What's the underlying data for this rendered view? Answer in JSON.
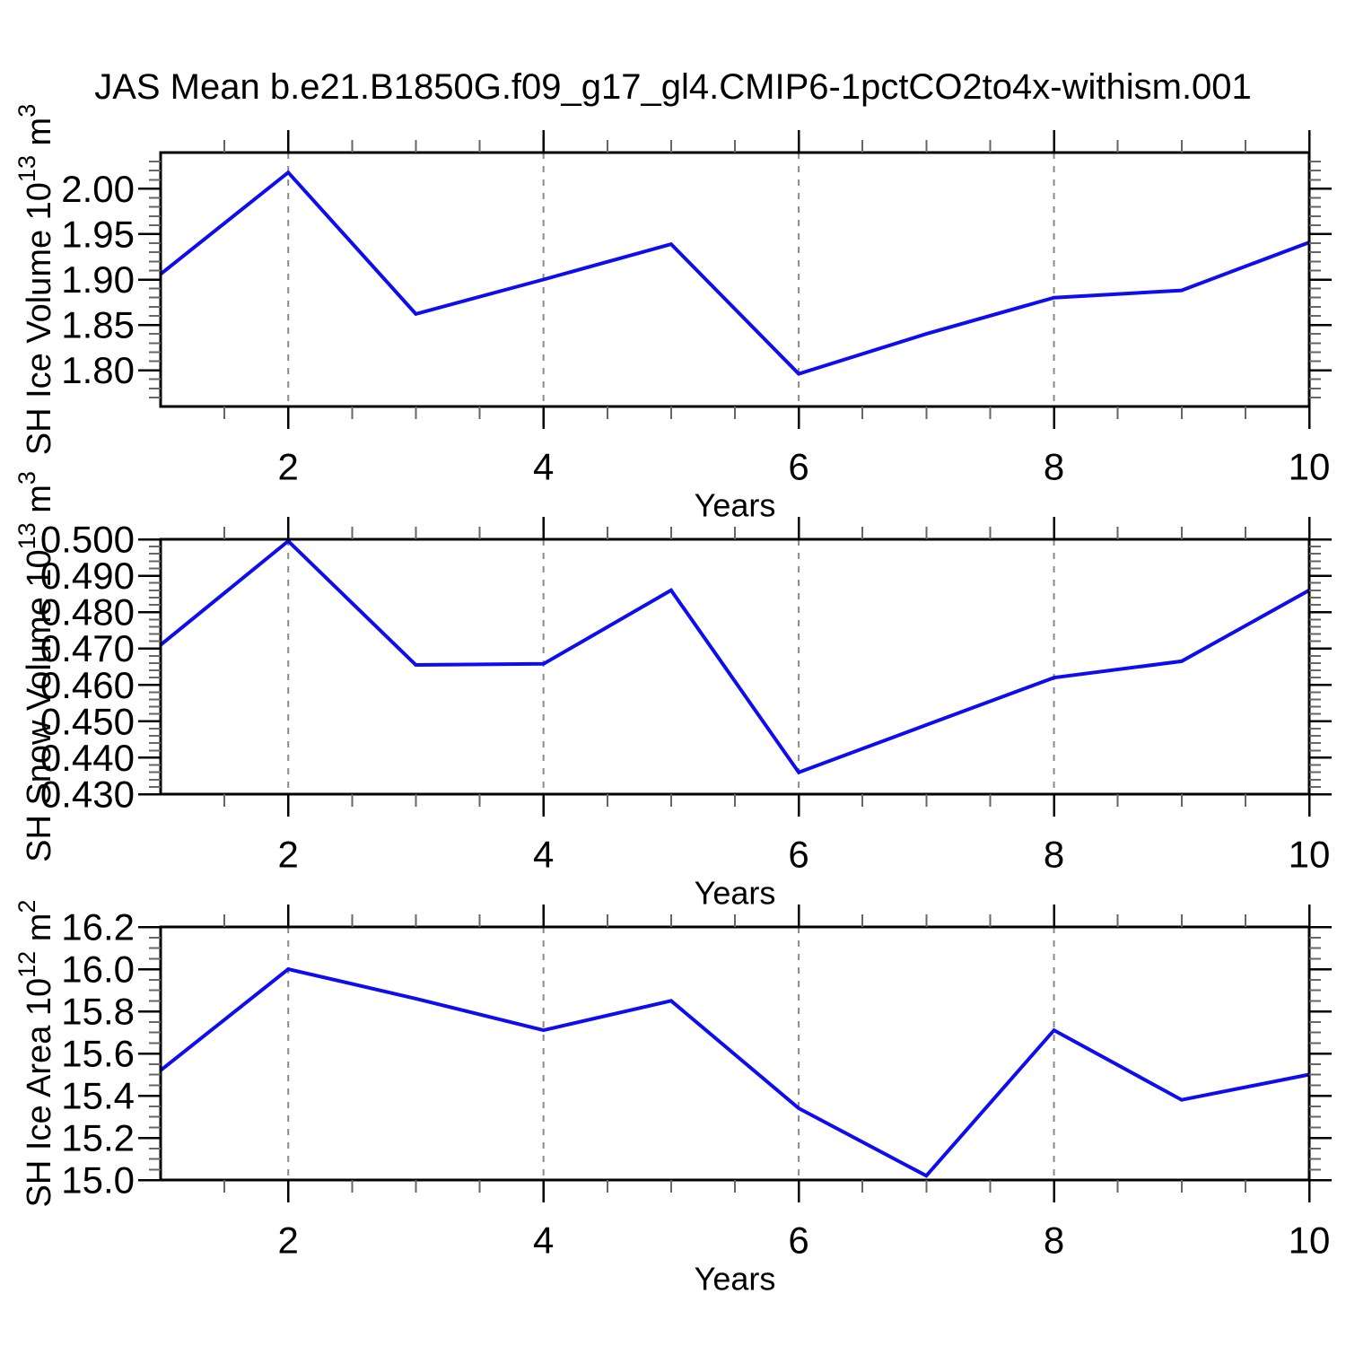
{
  "title": "JAS Mean b.e21.B1850G.f09_g17_gl4.CMIP6-1pctCO2to4x-withism.001",
  "colors": {
    "line": "#0d0df0",
    "frame": "#000000",
    "major_tick": "#000000",
    "minor_tick": "#666666",
    "grid": "#8a8a8a",
    "background": "#ffffff",
    "text": "#000000"
  },
  "chart_data": [
    {
      "type": "line",
      "panel": 1,
      "ylabel_parts": [
        {
          "text": "SH Ice Volume 10",
          "sup": false
        },
        {
          "text": "13",
          "sup": true
        },
        {
          "text": " m",
          "sup": false
        },
        {
          "text": "3",
          "sup": true
        }
      ],
      "xlabel": "Years",
      "x": [
        1,
        2,
        3,
        4,
        5,
        6,
        7,
        8,
        9,
        10
      ],
      "values": [
        1.906,
        2.018,
        1.862,
        1.9,
        1.939,
        1.796,
        1.84,
        1.88,
        1.888,
        1.941
      ],
      "xlim": [
        1,
        10
      ],
      "ylim": [
        1.76,
        2.04
      ],
      "ytick_majors": [
        1.8,
        1.85,
        1.9,
        1.95,
        2.0
      ],
      "ytick_labels": [
        "1.80",
        "1.85",
        "1.90",
        "1.95",
        "2.00"
      ],
      "ytick_minor_step": 0.01,
      "xtick_majors": [
        2,
        4,
        6,
        8,
        10
      ],
      "xtick_labels": [
        "2",
        "4",
        "6",
        "8",
        "10"
      ],
      "xtick_minor_step": 0.5,
      "grid_x": [
        2,
        4,
        6,
        8
      ],
      "grid_style": "dashed",
      "legend": "none"
    },
    {
      "type": "line",
      "panel": 2,
      "ylabel_parts": [
        {
          "text": "SH Snow Volume 10",
          "sup": false
        },
        {
          "text": "13",
          "sup": true
        },
        {
          "text": " m",
          "sup": false
        },
        {
          "text": "3",
          "sup": true
        }
      ],
      "xlabel": "Years",
      "x": [
        1,
        2,
        3,
        4,
        5,
        6,
        7,
        8,
        9,
        10
      ],
      "values": [
        0.471,
        0.4995,
        0.4655,
        0.4658,
        0.486,
        0.436,
        0.449,
        0.462,
        0.4665,
        0.486
      ],
      "xlim": [
        1,
        10
      ],
      "ylim": [
        0.43,
        0.5
      ],
      "ytick_majors": [
        0.43,
        0.44,
        0.45,
        0.46,
        0.47,
        0.48,
        0.49,
        0.5
      ],
      "ytick_labels": [
        "0.430",
        "0.440",
        "0.450",
        "0.460",
        "0.470",
        "0.480",
        "0.490",
        "0.500"
      ],
      "ytick_minor_step": 0.002,
      "xtick_majors": [
        2,
        4,
        6,
        8,
        10
      ],
      "xtick_labels": [
        "2",
        "4",
        "6",
        "8",
        "10"
      ],
      "xtick_minor_step": 0.5,
      "grid_x": [
        2,
        4,
        6,
        8
      ],
      "grid_style": "dashed",
      "legend": "none"
    },
    {
      "type": "line",
      "panel": 3,
      "ylabel_parts": [
        {
          "text": "SH Ice Area 10",
          "sup": false
        },
        {
          "text": "12",
          "sup": true
        },
        {
          "text": " m",
          "sup": false
        },
        {
          "text": "2",
          "sup": true
        }
      ],
      "xlabel": "Years",
      "x": [
        1,
        2,
        3,
        4,
        5,
        6,
        7,
        8,
        9,
        10
      ],
      "values": [
        15.52,
        16.0,
        15.86,
        15.71,
        15.85,
        15.34,
        15.02,
        15.71,
        15.38,
        15.5
      ],
      "xlim": [
        1,
        10
      ],
      "ylim": [
        15.0,
        16.2
      ],
      "ytick_majors": [
        15.0,
        15.2,
        15.4,
        15.6,
        15.8,
        16.0,
        16.2
      ],
      "ytick_labels": [
        "15.0",
        "15.2",
        "15.4",
        "15.6",
        "15.8",
        "16.0",
        "16.2"
      ],
      "ytick_minor_step": 0.05,
      "xtick_majors": [
        2,
        4,
        6,
        8,
        10
      ],
      "xtick_labels": [
        "2",
        "4",
        "6",
        "8",
        "10"
      ],
      "xtick_minor_step": 0.5,
      "grid_x": [
        2,
        4,
        6,
        8
      ],
      "grid_style": "dashed",
      "legend": "none"
    }
  ]
}
